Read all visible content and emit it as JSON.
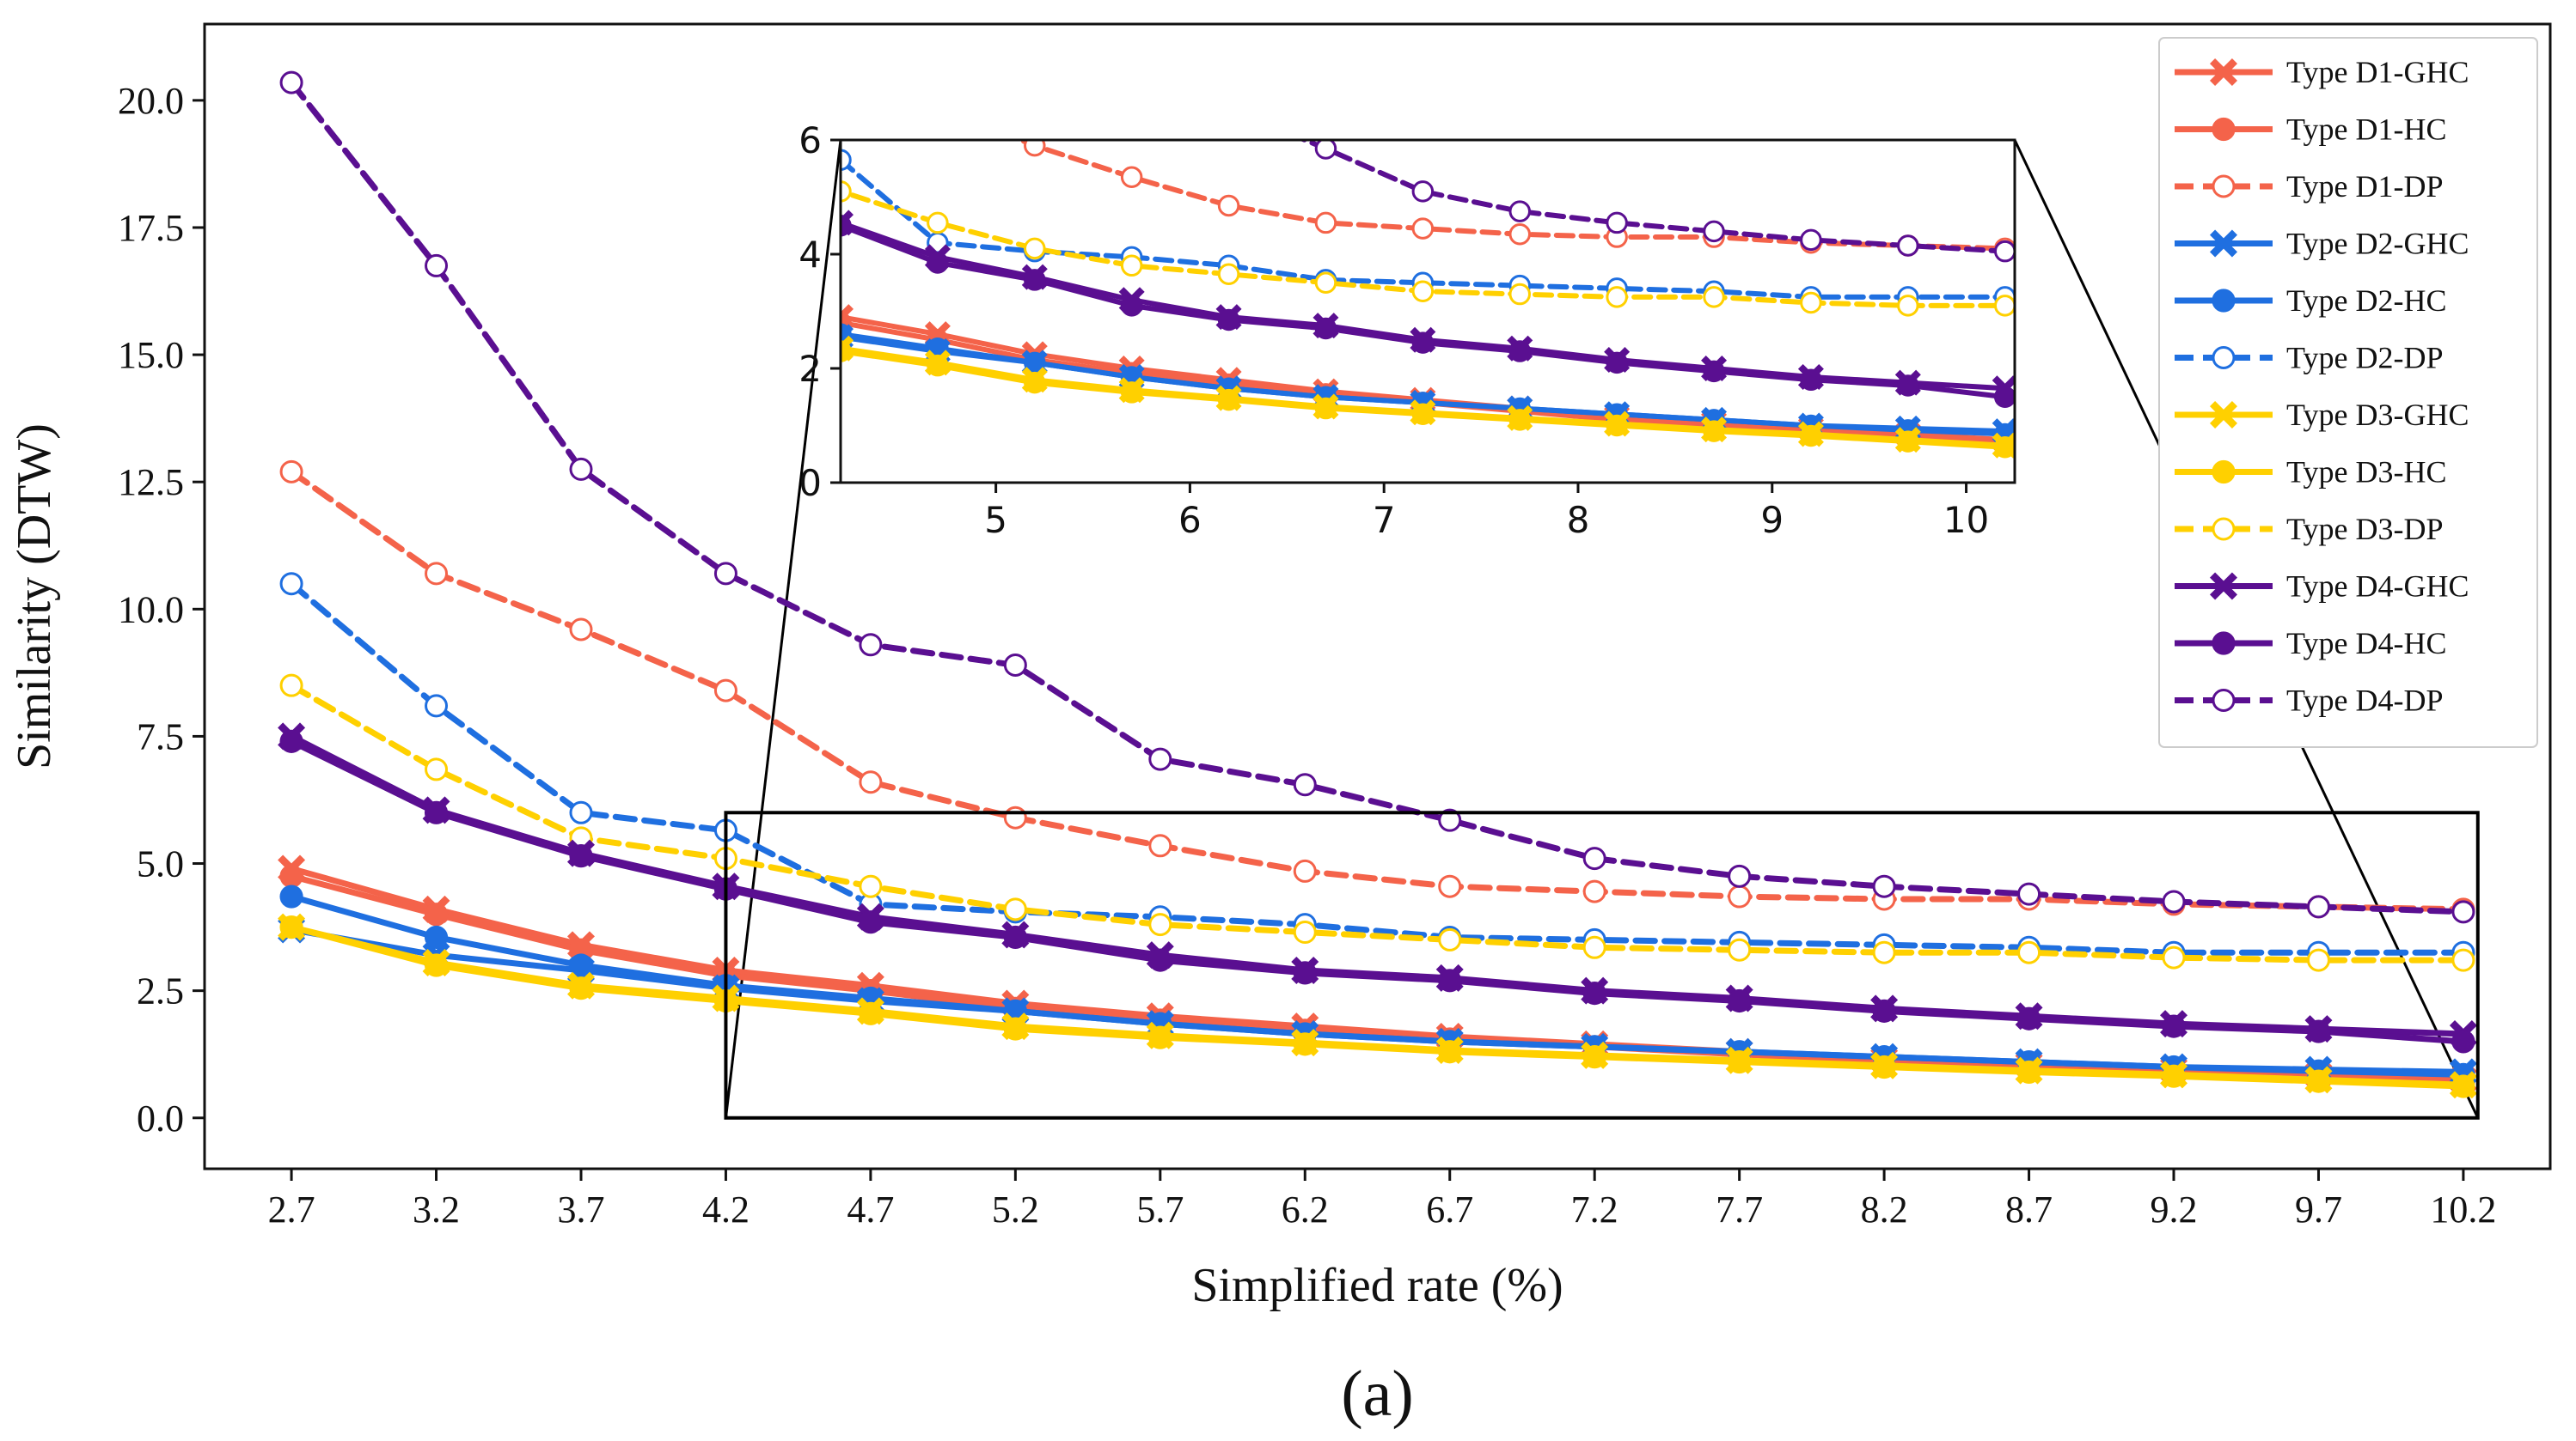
{
  "chart_data": {
    "type": "line",
    "title": "",
    "caption": "(a)",
    "xlabel": "Simplified rate (%)",
    "ylabel": "Similarity (DTW)",
    "x": [
      2.7,
      3.2,
      3.7,
      4.2,
      4.7,
      5.2,
      5.7,
      6.2,
      6.7,
      7.2,
      7.7,
      8.2,
      8.7,
      9.2,
      9.7,
      10.2
    ],
    "x_tick_labels": [
      "2.7",
      "3.2",
      "3.7",
      "4.2",
      "4.7",
      "5.2",
      "5.7",
      "6.2",
      "6.7",
      "7.2",
      "7.7",
      "8.2",
      "8.7",
      "9.2",
      "9.7",
      "10.2"
    ],
    "y_ticks": [
      0,
      2.5,
      5,
      7.5,
      10,
      12.5,
      15,
      17.5,
      20
    ],
    "y_tick_labels": [
      "0.0",
      "2.5",
      "5.0",
      "7.5",
      "10.0",
      "12.5",
      "15.0",
      "17.5",
      "20.0"
    ],
    "xlim": [
      2.4,
      10.5
    ],
    "ylim": [
      -1.0,
      21.5
    ],
    "grid": false,
    "legend_position": "top-right",
    "series": [
      {
        "name": "Type D1-GHC",
        "color": "#f4634a",
        "style": "solid",
        "marker": "x",
        "values": [
          4.9,
          4.1,
          3.4,
          2.9,
          2.6,
          2.25,
          2.0,
          1.8,
          1.6,
          1.45,
          1.3,
          1.15,
          1.05,
          0.95,
          0.85,
          0.75
        ]
      },
      {
        "name": "Type D1-HC",
        "color": "#f4634a",
        "style": "solid",
        "marker": "o",
        "values": [
          4.75,
          4.0,
          3.3,
          2.8,
          2.5,
          2.15,
          1.92,
          1.72,
          1.55,
          1.4,
          1.25,
          1.1,
          1.0,
          0.9,
          0.8,
          0.7
        ]
      },
      {
        "name": "Type D1-DP",
        "color": "#f4634a",
        "style": "dashed",
        "marker": "open",
        "values": [
          12.7,
          10.7,
          9.6,
          8.4,
          6.6,
          5.9,
          5.35,
          4.85,
          4.55,
          4.45,
          4.35,
          4.3,
          4.3,
          4.2,
          4.15,
          4.1
        ]
      },
      {
        "name": "Type D2-GHC",
        "color": "#1f6fe0",
        "style": "solid",
        "marker": "x",
        "values": [
          3.7,
          3.2,
          2.9,
          2.55,
          2.3,
          2.1,
          1.85,
          1.65,
          1.5,
          1.4,
          1.3,
          1.2,
          1.1,
          1.0,
          0.95,
          0.9
        ]
      },
      {
        "name": "Type D2-HC",
        "color": "#1f6fe0",
        "style": "solid",
        "marker": "o",
        "values": [
          4.35,
          3.55,
          3.0,
          2.6,
          2.35,
          2.1,
          1.85,
          1.65,
          1.5,
          1.4,
          1.3,
          1.2,
          1.1,
          1.0,
          0.92,
          0.85
        ]
      },
      {
        "name": "Type D2-DP",
        "color": "#1f6fe0",
        "style": "dashed",
        "marker": "open",
        "values": [
          10.5,
          8.1,
          6.0,
          5.65,
          4.2,
          4.05,
          3.95,
          3.8,
          3.55,
          3.5,
          3.45,
          3.4,
          3.35,
          3.25,
          3.25,
          3.25
        ]
      },
      {
        "name": "Type D3-GHC",
        "color": "#ffd000",
        "style": "solid",
        "marker": "x",
        "values": [
          3.75,
          3.05,
          2.6,
          2.35,
          2.1,
          1.8,
          1.62,
          1.48,
          1.33,
          1.23,
          1.13,
          1.03,
          0.93,
          0.85,
          0.75,
          0.65
        ]
      },
      {
        "name": "Type D3-HC",
        "color": "#ffd000",
        "style": "solid",
        "marker": "o",
        "values": [
          3.75,
          3.0,
          2.55,
          2.3,
          2.05,
          1.75,
          1.58,
          1.45,
          1.3,
          1.2,
          1.1,
          1.0,
          0.9,
          0.82,
          0.72,
          0.62
        ]
      },
      {
        "name": "Type D3-DP",
        "color": "#ffd000",
        "style": "dashed",
        "marker": "open",
        "values": [
          8.5,
          6.85,
          5.5,
          5.1,
          4.55,
          4.1,
          3.8,
          3.65,
          3.5,
          3.35,
          3.3,
          3.25,
          3.25,
          3.15,
          3.1,
          3.1
        ]
      },
      {
        "name": "Type D4-GHC",
        "color": "#5a0f91",
        "style": "solid",
        "marker": "x",
        "values": [
          7.5,
          6.05,
          5.2,
          4.55,
          3.95,
          3.6,
          3.2,
          2.9,
          2.75,
          2.5,
          2.35,
          2.15,
          2.0,
          1.85,
          1.75,
          1.65
        ]
      },
      {
        "name": "Type D4-HC",
        "color": "#5a0f91",
        "style": "solid",
        "marker": "o",
        "values": [
          7.4,
          6.0,
          5.15,
          4.5,
          3.85,
          3.55,
          3.1,
          2.85,
          2.7,
          2.45,
          2.3,
          2.1,
          1.95,
          1.8,
          1.7,
          1.5
        ]
      },
      {
        "name": "Type D4-DP",
        "color": "#5a0f91",
        "style": "dashed",
        "marker": "open",
        "values": [
          20.35,
          16.75,
          12.75,
          10.7,
          9.3,
          8.9,
          7.05,
          6.55,
          5.85,
          5.1,
          4.75,
          4.55,
          4.4,
          4.25,
          4.15,
          4.05
        ]
      }
    ],
    "inset": {
      "xlim": [
        4.2,
        10.25
      ],
      "ylim": [
        0,
        6
      ],
      "x_ticks": [
        5,
        6,
        7,
        8,
        9,
        10
      ],
      "x_tick_labels": [
        "5",
        "6",
        "7",
        "8",
        "9",
        "10"
      ],
      "y_ticks": [
        0,
        2,
        4,
        6
      ],
      "y_tick_labels": [
        "0",
        "2",
        "4",
        "6"
      ],
      "zoom_region": {
        "x": [
          4.2,
          10.25
        ],
        "y": [
          0,
          6
        ]
      }
    }
  }
}
